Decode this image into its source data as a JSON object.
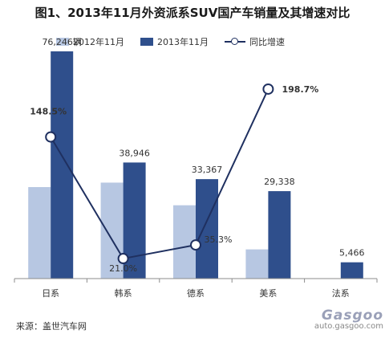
{
  "title": "图1、2013年11月外资派系SUV国产车销量及其增速对比",
  "legend": [
    "2012年11月",
    "2013年11月",
    "同比增速"
  ],
  "source": "来源：盖世汽车网",
  "watermark": {
    "logo": "Gasgoo",
    "url": "auto.gasgoo.com"
  },
  "colors": {
    "y2012": "#b7c7e2",
    "y2013": "#2f4f8c",
    "growth": "#1f3060",
    "axis": "#8c8c8c"
  },
  "chart_data": {
    "type": "bar",
    "categories": [
      "日系",
      "韩系",
      "德系",
      "美系",
      "法系"
    ],
    "series": [
      {
        "name": "2012年11月",
        "values": [
          30700,
          32200,
          24600,
          9800,
          0
        ]
      },
      {
        "name": "2013年11月",
        "values": [
          76246,
          38946,
          33367,
          29338,
          5466
        ]
      }
    ],
    "bar_labels": [
      "76,246辆",
      "38,946",
      "33,367",
      "29,338",
      "5,466"
    ],
    "line_series": {
      "name": "同比增速",
      "values": [
        148.5,
        21.0,
        35.3,
        198.7,
        null
      ],
      "labels": [
        "148.5%",
        "21.0%",
        "35.3%",
        "198.7%",
        ""
      ]
    },
    "ylim": [
      0,
      80000
    ],
    "line_ylim": [
      0,
      250
    ]
  }
}
